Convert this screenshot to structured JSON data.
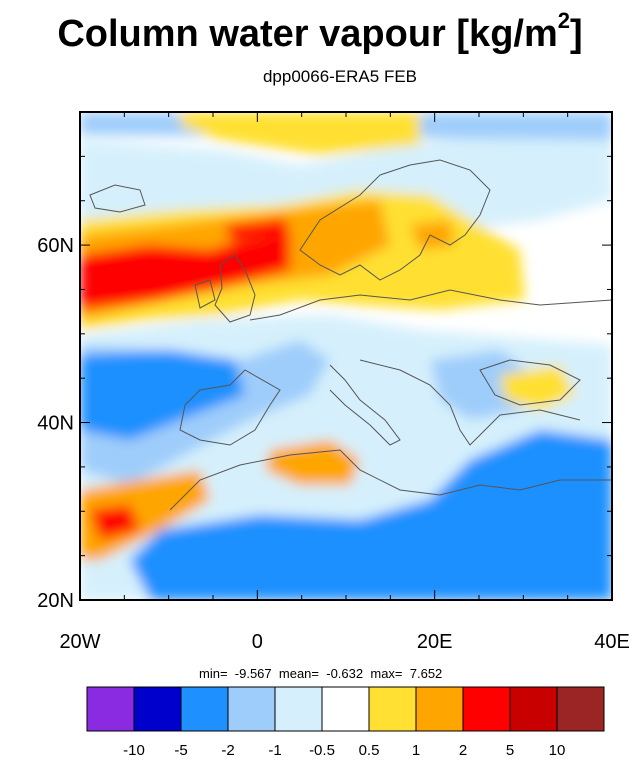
{
  "title": {
    "main": "Column water vapour [kg/m",
    "exponent": "2",
    "close": "]"
  },
  "subtitle": "dpp0066-ERA5 FEB",
  "map": {
    "type": "map",
    "projection": "lat-lon",
    "lon_range": [
      -20,
      40
    ],
    "lat_range": [
      20,
      75
    ],
    "x_tick_labels": [
      "20W",
      "0",
      "20E",
      "40E"
    ],
    "y_tick_labels": [
      "20N",
      "40N",
      "60N"
    ],
    "field": "difference (dpp0066 minus ERA5) of column water vapour, February"
  },
  "stats": {
    "min_label": "min=",
    "min_value": "-9.567",
    "mean_label": "mean=",
    "mean_value": "-0.632",
    "max_label": "max=",
    "max_value": "7.652"
  },
  "colorbar": {
    "labels": [
      "-10",
      "-5",
      "-2",
      "-1",
      "-0.5",
      "0.5",
      "1",
      "2",
      "5",
      "10"
    ],
    "colors": [
      "#8a2be2",
      "#0000cd",
      "#1e90ff",
      "#9fcdfb",
      "#d5f0fc",
      "#ffffff",
      "#ffe033",
      "#ffa500",
      "#ff0000",
      "#c90000",
      "#9b2424"
    ]
  }
}
